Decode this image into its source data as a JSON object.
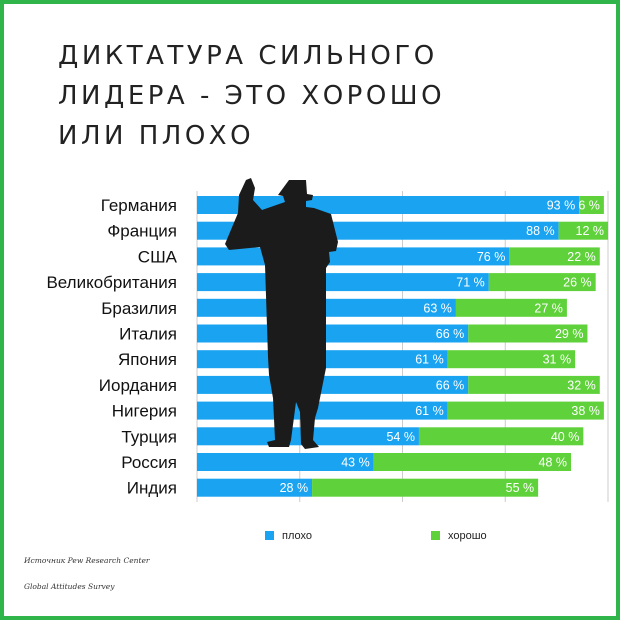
{
  "title_lines": [
    "ДИКТАТУРА СИЛЬНОГО",
    "ЛИДЕРА - ЭТО ХОРОШО",
    "ИЛИ ПЛОХО"
  ],
  "source": "Источник Pew Research Center",
  "survey": "Global Attitudes Survey",
  "colors": {
    "bad": "#1aa3f0",
    "good": "#5fd13a",
    "frame": "#2fb54a",
    "silhouette": "#1b1b1b"
  },
  "icons": {
    "decoration": "man-in-top-hat-silhouette-icon"
  },
  "chart_data": {
    "type": "bar",
    "orientation": "horizontal",
    "stacked": true,
    "categories": [
      "Германия",
      "Франция",
      "США",
      "Великобритания",
      "Бразилия",
      "Италия",
      "Япония",
      "Иордания",
      "Нигерия",
      "Турция",
      "Россия",
      "Индия"
    ],
    "series": [
      {
        "name": "плохо",
        "values": [
          93,
          88,
          76,
          71,
          63,
          66,
          61,
          66,
          61,
          54,
          43,
          28
        ]
      },
      {
        "name": "хорошо",
        "values": [
          6,
          12,
          22,
          26,
          27,
          29,
          31,
          32,
          38,
          40,
          48,
          55
        ]
      }
    ],
    "value_labels": {
      "bad": [
        "93 %",
        "88 %",
        "76 %",
        "71 %",
        "63 %",
        "66 %",
        "61 %",
        "66 %",
        "61 %",
        "54 %",
        "43 %",
        "28 %"
      ],
      "good": [
        "6 %",
        "12 %",
        "22 %",
        "26 %",
        "27 %",
        "29 %",
        "31 %",
        "32 %",
        "38 %",
        "40 %",
        "48 %",
        "55 %"
      ]
    },
    "xlim": [
      0,
      100
    ],
    "grid": true,
    "legend": "bottom"
  }
}
